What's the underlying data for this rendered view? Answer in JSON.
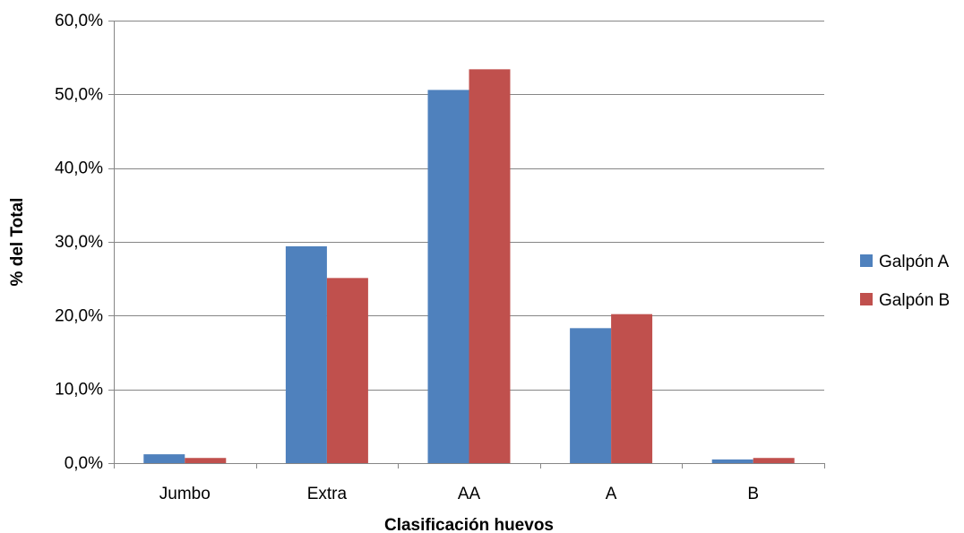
{
  "chart_data": {
    "type": "bar",
    "title": "",
    "xlabel": "Clasificación huevos",
    "ylabel": "% del Total",
    "categories": [
      "Jumbo",
      "Extra",
      "AA",
      "A",
      "B"
    ],
    "series": [
      {
        "name": "Galpón A",
        "color": "#4F81BD",
        "values": [
          1.2,
          29.4,
          50.6,
          18.3,
          0.5
        ]
      },
      {
        "name": "Galpón B",
        "color": "#C0504D",
        "values": [
          0.7,
          25.1,
          53.4,
          20.2,
          0.7
        ]
      }
    ],
    "ylim": [
      0,
      60
    ],
    "yticks": [
      "0,0%",
      "10,0%",
      "20,0%",
      "30,0%",
      "40,0%",
      "50,0%",
      "60,0%"
    ],
    "grid": true,
    "legend_position": "right"
  }
}
